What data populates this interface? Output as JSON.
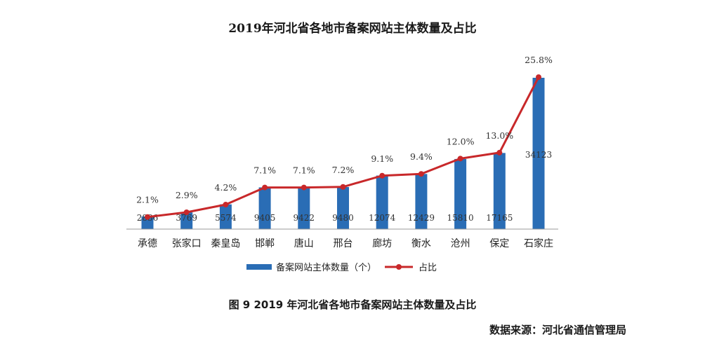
{
  "chart_data": {
    "type": "bar",
    "title": "2019年河北省各地市备案网站主体数量及占比",
    "categories": [
      "承德",
      "张家口",
      "秦皇岛",
      "邯郸",
      "唐山",
      "邢台",
      "廊坊",
      "衡水",
      "沧州",
      "保定",
      "石家庄"
    ],
    "series": [
      {
        "name": "备案网站主体数量（个）",
        "type": "bar",
        "values": [
          2836,
          3769,
          5574,
          9405,
          9422,
          9480,
          12074,
          12429,
          15810,
          17165,
          34123
        ],
        "labels": [
          "2836",
          "3769",
          "5574",
          "9405",
          "9422",
          "9480",
          "12074",
          "12429",
          "15810",
          "17165",
          "34123"
        ],
        "color": "#2a6db5"
      },
      {
        "name": "占比",
        "type": "line",
        "values": [
          2.1,
          2.9,
          4.2,
          7.1,
          7.1,
          7.2,
          9.1,
          9.4,
          12.0,
          13.0,
          25.8
        ],
        "labels": [
          "2.1%",
          "2.9%",
          "4.2%",
          "7.1%",
          "7.1%",
          "7.2%",
          "9.1%",
          "9.4%",
          "12.0%",
          "13.0%",
          "25.8%"
        ],
        "color": "#c8282a"
      }
    ],
    "legend_position": "bottom",
    "grid": false
  },
  "caption": "图 9   2019 年河北省各地市备案网站主体数量及占比",
  "source": "数据来源：河北省通信管理局"
}
